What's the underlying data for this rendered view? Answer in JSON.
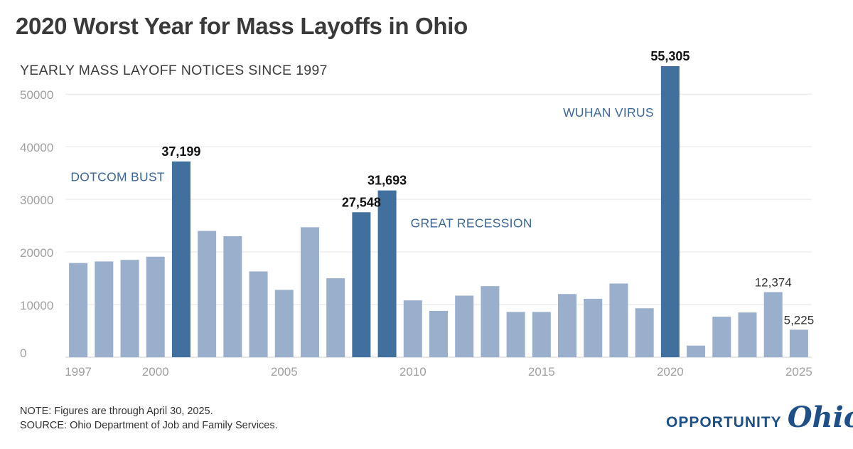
{
  "header": {
    "title": "2020 Worst Year for Mass Layoffs in Ohio",
    "subtitle": "YEARLY MASS LAYOFF NOTICES SINCE 1997"
  },
  "footer": {
    "note": "NOTE: Figures are through April 30, 2025.",
    "source": "SOURCE: Ohio Department of Job and Family Services.",
    "logo_text": "OPPORTUNITY",
    "logo_script": "Ohio"
  },
  "colors": {
    "bar": "#9aafcb",
    "bar_highlight": "#42709e",
    "annotation": "#3d6797",
    "axis_text": "#a0a0a0",
    "gridline": "#e6e6e6"
  },
  "chart_data": {
    "type": "bar",
    "title": "2020 Worst Year for Mass Layoffs in Ohio",
    "subtitle": "YEARLY MASS LAYOFF NOTICES SINCE 1997",
    "categories": [
      "1997",
      "1998",
      "1999",
      "2000",
      "2001",
      "2002",
      "2003",
      "2004",
      "2005",
      "2006",
      "2007",
      "2008",
      "2009",
      "2010",
      "2011",
      "2012",
      "2013",
      "2014",
      "2015",
      "2016",
      "2017",
      "2018",
      "2019",
      "2020",
      "2021",
      "2022",
      "2023",
      "2024",
      "2025"
    ],
    "values": [
      17900,
      18200,
      18500,
      19100,
      37199,
      24000,
      23000,
      16300,
      12800,
      24700,
      15000,
      27548,
      31693,
      10800,
      8800,
      11700,
      13500,
      8600,
      8600,
      12000,
      11100,
      14000,
      9300,
      55305,
      2200,
      7700,
      8500,
      12374,
      5225
    ],
    "highlighted": [
      "2001",
      "2008",
      "2009",
      "2020"
    ],
    "data_labels": [
      {
        "category": "2001",
        "text": "37,199",
        "bold": true
      },
      {
        "category": "2008",
        "text": "27,548",
        "bold": true
      },
      {
        "category": "2009",
        "text": "31,693",
        "bold": true
      },
      {
        "category": "2020",
        "text": "55,305",
        "bold": true
      },
      {
        "category": "2024",
        "text": "12,374",
        "bold": false
      },
      {
        "category": "2025",
        "text": "5,225",
        "bold": false
      }
    ],
    "annotations": [
      {
        "category": "2001",
        "text": "DOTCOM BUST",
        "side": "left",
        "value": 33500
      },
      {
        "category": "2009",
        "text": "GREAT RECESSION",
        "side": "right",
        "value": 24700
      },
      {
        "category": "2020",
        "text": "WUHAN VIRUS",
        "side": "left",
        "value": 45700
      }
    ],
    "x_tick_labels": [
      "1997",
      "2000",
      "2005",
      "2010",
      "2015",
      "2020",
      "2025"
    ],
    "y_ticks": [
      0,
      10000,
      20000,
      30000,
      40000,
      50000
    ],
    "ylim": [
      0,
      55305
    ],
    "xlabel": "",
    "ylabel": "",
    "grid": true
  }
}
